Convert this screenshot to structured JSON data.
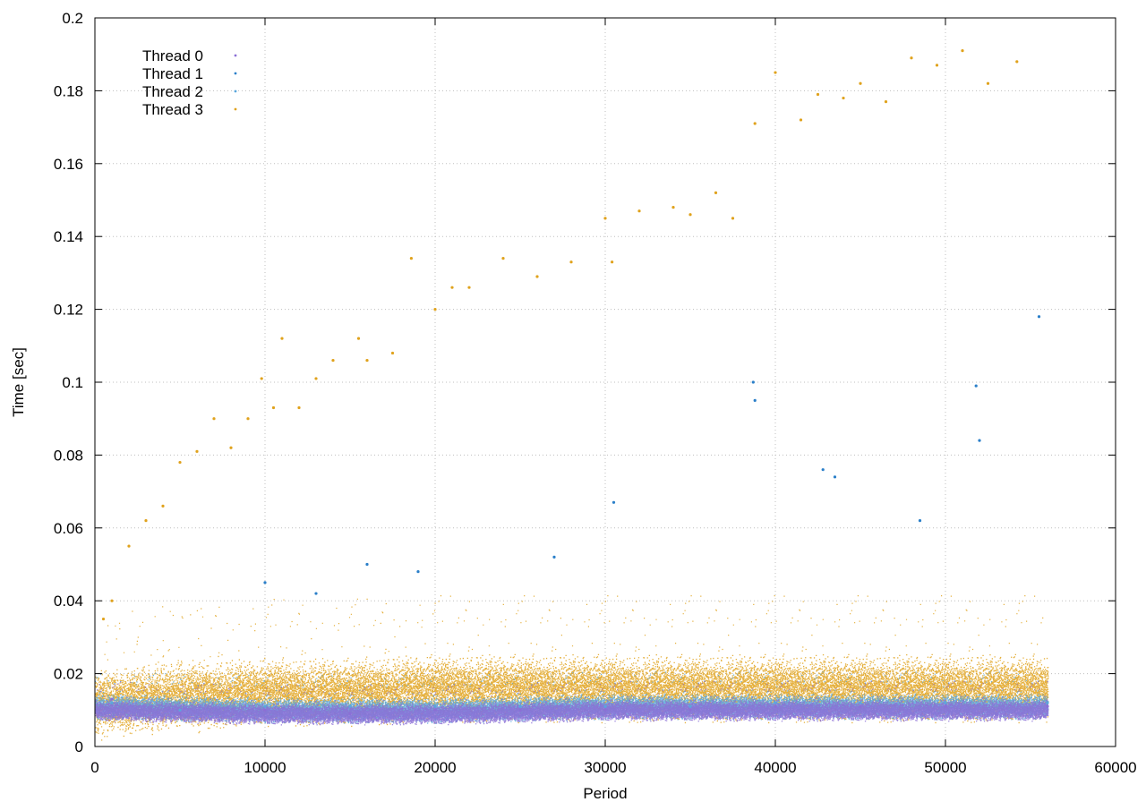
{
  "chart_data": {
    "type": "scatter",
    "title": "",
    "xlabel": "Period",
    "ylabel": "Time [sec]",
    "xlim": [
      0,
      60000
    ],
    "ylim": [
      0,
      0.2
    ],
    "x_ticks": [
      0,
      10000,
      20000,
      30000,
      40000,
      50000,
      60000
    ],
    "y_ticks": [
      0,
      0.02,
      0.04,
      0.06,
      0.08,
      0.1,
      0.12,
      0.14,
      0.16,
      0.18,
      0.2
    ],
    "x_tick_labels": [
      "0",
      "10000",
      "20000",
      "30000",
      "40000",
      "50000",
      "60000"
    ],
    "y_tick_labels": [
      "0",
      "0.02",
      "0.04",
      "0.06",
      "0.08",
      "0.1",
      "0.12",
      "0.14",
      "0.16",
      "0.18",
      "0.2"
    ],
    "grid": true,
    "legend_position": "top-left",
    "series": [
      {
        "name": "Thread 0",
        "color": "#8b6fd6",
        "points": [
          [
            1000,
            0.013
          ],
          [
            5000,
            0.009
          ],
          [
            10000,
            0.01
          ],
          [
            15000,
            0.009
          ],
          [
            20000,
            0.01
          ],
          [
            25000,
            0.01
          ],
          [
            30000,
            0.01
          ],
          [
            35000,
            0.01
          ],
          [
            40000,
            0.011
          ],
          [
            45000,
            0.011
          ],
          [
            50000,
            0.011
          ],
          [
            56000,
            0.011
          ]
        ]
      },
      {
        "name": "Thread 1",
        "color": "#2a7fc9",
        "points": [
          [
            10000,
            0.045
          ],
          [
            13000,
            0.042
          ],
          [
            16000,
            0.05
          ],
          [
            19000,
            0.048
          ],
          [
            27000,
            0.052
          ],
          [
            30500,
            0.067
          ],
          [
            38700,
            0.1
          ],
          [
            38800,
            0.095
          ],
          [
            42800,
            0.076
          ],
          [
            43500,
            0.074
          ],
          [
            48500,
            0.062
          ],
          [
            51800,
            0.099
          ],
          [
            52000,
            0.084
          ],
          [
            55500,
            0.118
          ]
        ]
      },
      {
        "name": "Thread 2",
        "color": "#5aa7dc",
        "points": [
          [
            1000,
            0.012
          ],
          [
            5000,
            0.01
          ],
          [
            10000,
            0.011
          ],
          [
            15000,
            0.011
          ],
          [
            20000,
            0.011
          ],
          [
            25000,
            0.011
          ],
          [
            30000,
            0.011
          ],
          [
            35000,
            0.011
          ],
          [
            40000,
            0.012
          ],
          [
            45000,
            0.012
          ],
          [
            50000,
            0.012
          ],
          [
            56000,
            0.012
          ]
        ]
      },
      {
        "name": "Thread 3",
        "color": "#e0a21c",
        "points": [
          [
            500,
            0.035
          ],
          [
            1000,
            0.04
          ],
          [
            2000,
            0.055
          ],
          [
            3000,
            0.062
          ],
          [
            4000,
            0.066
          ],
          [
            5000,
            0.078
          ],
          [
            6000,
            0.081
          ],
          [
            7000,
            0.09
          ],
          [
            8000,
            0.082
          ],
          [
            9000,
            0.09
          ],
          [
            9800,
            0.101
          ],
          [
            10500,
            0.093
          ],
          [
            11000,
            0.112
          ],
          [
            12000,
            0.093
          ],
          [
            13000,
            0.101
          ],
          [
            14000,
            0.106
          ],
          [
            15500,
            0.112
          ],
          [
            16000,
            0.106
          ],
          [
            17500,
            0.108
          ],
          [
            18600,
            0.134
          ],
          [
            20000,
            0.12
          ],
          [
            21000,
            0.126
          ],
          [
            22000,
            0.126
          ],
          [
            24000,
            0.134
          ],
          [
            26000,
            0.129
          ],
          [
            28000,
            0.133
          ],
          [
            30000,
            0.145
          ],
          [
            30400,
            0.133
          ],
          [
            32000,
            0.147
          ],
          [
            34000,
            0.148
          ],
          [
            35000,
            0.146
          ],
          [
            36500,
            0.152
          ],
          [
            37500,
            0.145
          ],
          [
            38800,
            0.171
          ],
          [
            40000,
            0.185
          ],
          [
            41500,
            0.172
          ],
          [
            42500,
            0.179
          ],
          [
            44000,
            0.178
          ],
          [
            45000,
            0.182
          ],
          [
            46500,
            0.177
          ],
          [
            48000,
            0.189
          ],
          [
            49500,
            0.187
          ],
          [
            51000,
            0.191
          ],
          [
            52500,
            0.182
          ],
          [
            54200,
            0.188
          ]
        ]
      }
    ],
    "band_series": [
      {
        "name": "Thread 3",
        "color": "#e0a21c",
        "center": [
          [
            0,
            0.012
          ],
          [
            5000,
            0.014
          ],
          [
            10000,
            0.015
          ],
          [
            15000,
            0.015
          ],
          [
            20000,
            0.016
          ],
          [
            25000,
            0.016
          ],
          [
            30000,
            0.016
          ],
          [
            35000,
            0.016
          ],
          [
            40000,
            0.016
          ],
          [
            45000,
            0.016
          ],
          [
            50000,
            0.016
          ],
          [
            56000,
            0.016
          ]
        ],
        "spread": 0.008
      },
      {
        "name": "Thread 2",
        "color": "#5aa7dc",
        "center": [
          [
            0,
            0.011
          ],
          [
            10000,
            0.01
          ],
          [
            20000,
            0.01
          ],
          [
            30000,
            0.011
          ],
          [
            40000,
            0.011
          ],
          [
            50000,
            0.011
          ],
          [
            56000,
            0.011
          ]
        ],
        "spread": 0.003
      },
      {
        "name": "Thread 0",
        "color": "#8b6fd6",
        "center": [
          [
            0,
            0.01
          ],
          [
            10000,
            0.009
          ],
          [
            20000,
            0.009
          ],
          [
            30000,
            0.01
          ],
          [
            40000,
            0.01
          ],
          [
            50000,
            0.01
          ],
          [
            56000,
            0.01
          ]
        ],
        "spread": 0.0025
      }
    ]
  }
}
